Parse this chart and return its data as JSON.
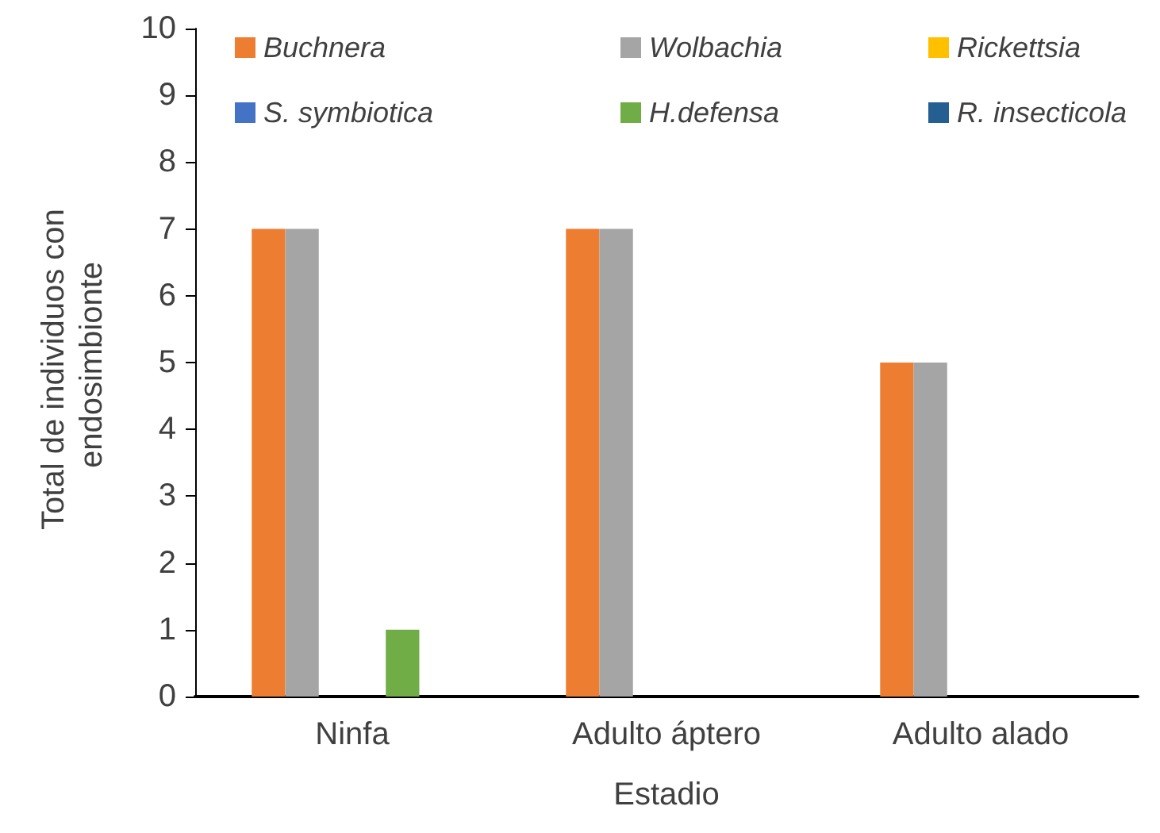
{
  "chart_data": {
    "type": "bar",
    "xlabel": "Estadio",
    "ylabel": "Total de individuos con endosimbionte",
    "categories": [
      "Ninfa",
      "Adulto áptero",
      "Adulto alado"
    ],
    "series": [
      {
        "name": "Buchnera",
        "color": "#ed7d31",
        "values": [
          7,
          7,
          5
        ]
      },
      {
        "name": "Wolbachia",
        "color": "#a5a5a5",
        "values": [
          7,
          7,
          5
        ]
      },
      {
        "name": "Rickettsia",
        "color": "#ffc000",
        "values": [
          0,
          0,
          0
        ]
      },
      {
        "name": "S. symbiotica",
        "color": "#4472c4",
        "values": [
          0,
          0,
          0
        ]
      },
      {
        "name": "H.defensa",
        "color": "#70ad47",
        "values": [
          1,
          0,
          0
        ]
      },
      {
        "name": "R. insecticola",
        "color": "#255e91",
        "values": [
          0,
          0,
          0
        ]
      }
    ],
    "ylim": [
      0,
      10
    ],
    "yticks": [
      0,
      1,
      2,
      3,
      4,
      5,
      6,
      7,
      8,
      9,
      10
    ],
    "grid": false,
    "legend": "top"
  }
}
